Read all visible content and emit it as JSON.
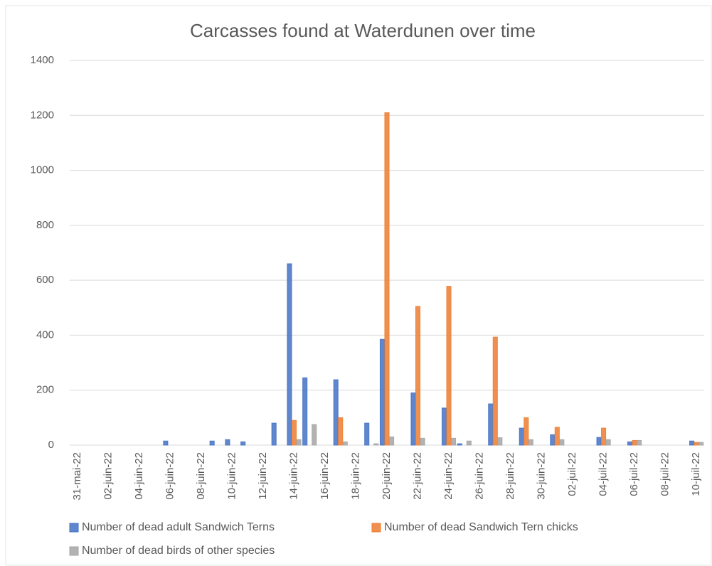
{
  "chart_data": {
    "type": "bar",
    "title": "Carcasses found at Waterdunen over time",
    "categories": [
      "31-mai-22",
      null,
      "02-juin-22",
      null,
      "04-juin-22",
      null,
      "06-juin-22",
      null,
      "08-juin-22",
      null,
      "10-juin-22",
      null,
      "12-juin-22",
      null,
      "14-juin-22",
      null,
      "16-juin-22",
      null,
      "18-juin-22",
      null,
      "20-juin-22",
      null,
      "22-juin-22",
      null,
      "24-juin-22",
      null,
      "26-juin-22",
      null,
      "28-juin-22",
      null,
      "30-juin-22",
      null,
      "02-juil-22",
      null,
      "04-juil-22",
      null,
      "06-juil-22",
      null,
      "08-juil-22",
      null,
      "10-juil-22"
    ],
    "series": [
      {
        "name": "Number of dead adult Sandwich Terns",
        "color": "#4472c4",
        "values": [
          0,
          0,
          0,
          0,
          0,
          0,
          15,
          0,
          0,
          15,
          20,
          12,
          0,
          80,
          660,
          245,
          0,
          238,
          0,
          80,
          385,
          0,
          190,
          0,
          135,
          5,
          0,
          150,
          0,
          62,
          0,
          38,
          0,
          0,
          28,
          0,
          12,
          0,
          0,
          0,
          15
        ]
      },
      {
        "name": "Number of dead Sandwich Tern chicks",
        "color": "#ed7d31",
        "values": [
          0,
          0,
          0,
          0,
          0,
          0,
          0,
          0,
          0,
          0,
          0,
          0,
          0,
          0,
          90,
          0,
          0,
          100,
          0,
          0,
          1210,
          0,
          505,
          0,
          578,
          0,
          0,
          393,
          0,
          100,
          0,
          65,
          0,
          0,
          62,
          0,
          17,
          0,
          0,
          0,
          10
        ]
      },
      {
        "name": "Number of dead birds of other species",
        "color": "#a5a5a5",
        "values": [
          0,
          0,
          0,
          0,
          0,
          0,
          0,
          0,
          0,
          0,
          0,
          0,
          0,
          0,
          20,
          75,
          0,
          12,
          0,
          5,
          30,
          0,
          25,
          0,
          25,
          15,
          0,
          27,
          0,
          20,
          0,
          20,
          0,
          0,
          20,
          0,
          17,
          0,
          0,
          0,
          10
        ]
      }
    ],
    "ylim": [
      0,
      1400
    ],
    "yticks": [
      0,
      200,
      400,
      600,
      800,
      1000,
      1200,
      1400
    ],
    "grid": true,
    "legend": "bottom"
  }
}
